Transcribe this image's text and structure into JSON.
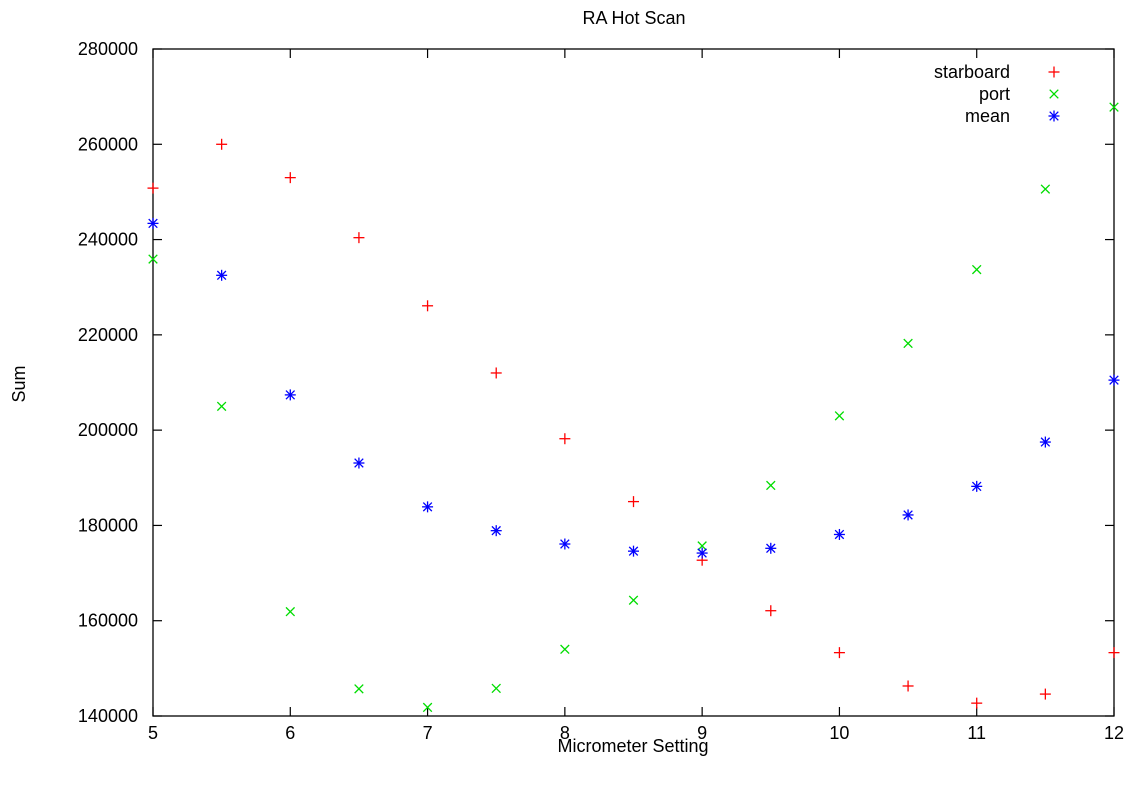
{
  "chart_data": {
    "type": "scatter",
    "title": "RA Hot Scan",
    "xlabel": "Micrometer Setting",
    "ylabel": "Sum",
    "xlim": [
      5,
      12
    ],
    "ylim": [
      140000,
      280000
    ],
    "xticks": [
      5,
      6,
      7,
      8,
      9,
      10,
      11,
      12
    ],
    "yticks": [
      140000,
      160000,
      180000,
      200000,
      220000,
      240000,
      260000,
      280000
    ],
    "xtick_labels": [
      "5",
      "6",
      "7",
      "8",
      "9",
      "10",
      "11",
      "12"
    ],
    "ytick_labels": [
      "140000",
      "160000",
      "180000",
      "200000",
      "220000",
      "240000",
      "260000",
      "280000"
    ],
    "grid": false,
    "legend_position": "top-right",
    "x": [
      5,
      5.5,
      6,
      6.5,
      7,
      7.5,
      8,
      8.5,
      9,
      9.5,
      10,
      10.5,
      11,
      11.5,
      12
    ],
    "series": [
      {
        "name": "starboard",
        "marker": "plus",
        "color": "#ff0000",
        "values": [
          250800,
          260000,
          253000,
          240400,
          226100,
          212000,
          198200,
          185000,
          172700,
          162100,
          153300,
          146300,
          142700,
          144600,
          153300
        ]
      },
      {
        "name": "port",
        "marker": "cross",
        "color": "#00dd00",
        "values": [
          235900,
          205000,
          161900,
          145700,
          141800,
          145800,
          154000,
          164300,
          175700,
          188400,
          203000,
          218200,
          233700,
          250600,
          267800
        ]
      },
      {
        "name": "mean",
        "marker": "star",
        "color": "#0000ff",
        "values": [
          243400,
          232500,
          207400,
          193100,
          183900,
          178900,
          176100,
          174600,
          174200,
          175200,
          178100,
          182200,
          188200,
          197500,
          210500
        ]
      }
    ]
  }
}
